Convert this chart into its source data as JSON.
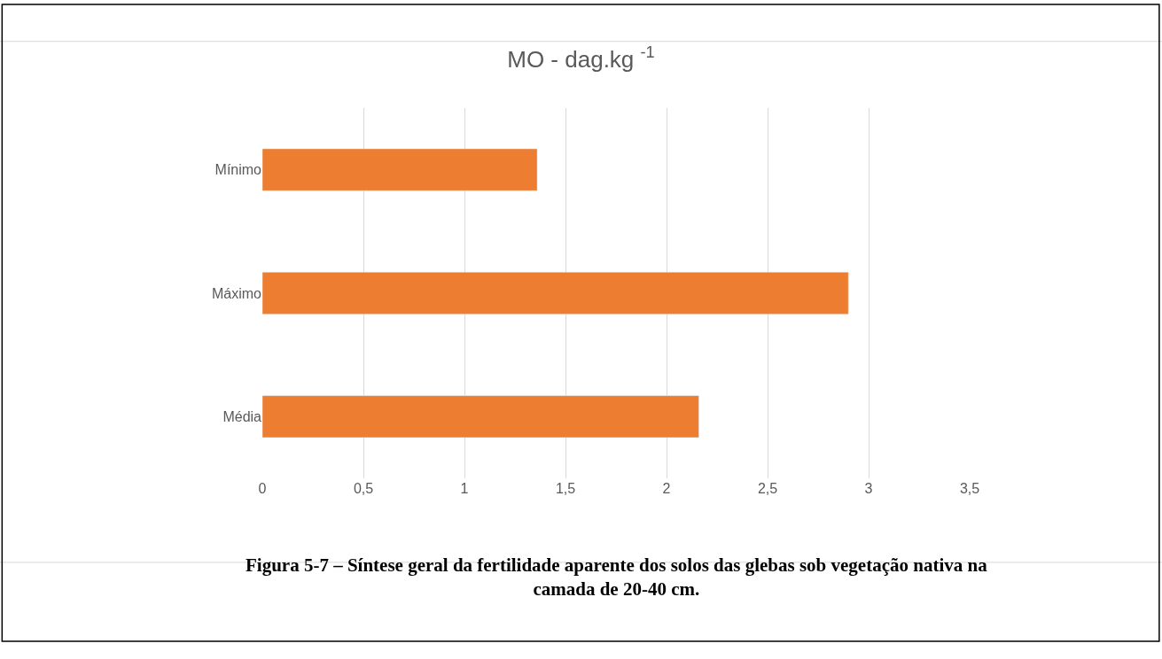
{
  "chart_data": {
    "type": "bar",
    "orientation": "horizontal",
    "title": "MO - dag.kg $^{-1}$",
    "categories": [
      "Mínimo",
      "Máximo",
      "Média"
    ],
    "values": [
      1.36,
      2.9,
      2.16
    ],
    "color": "#ed7d31",
    "xlim": [
      0,
      3.5
    ],
    "xticks": [
      0,
      {
        "value": 0.5,
        "label": "0,5"
      },
      1,
      {
        "value": 1.5,
        "label": "1,5"
      },
      2,
      {
        "value": 2.5,
        "label": "2,5"
      },
      3,
      {
        "value": 3.5,
        "label": "3,5"
      }
    ],
    "grid": "x",
    "legend": false,
    "annotations": [
      "Figura 5-7 – Síntese geral da fertilidade aparente dos solos das glebas sob vegetação nativa na camada de 20-40 cm."
    ]
  }
}
